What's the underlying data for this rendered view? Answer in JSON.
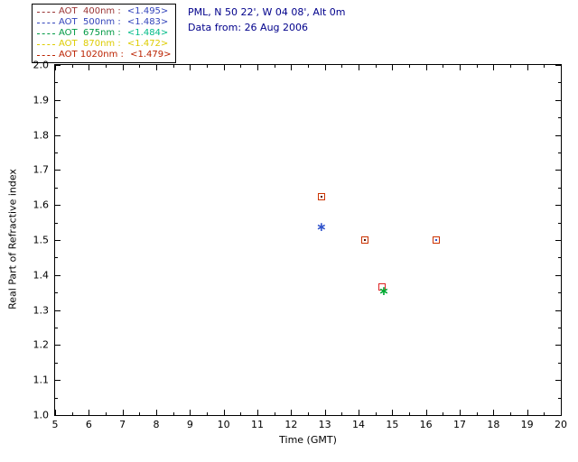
{
  "header": {
    "location": "PML, N 50 22', W 04 08', Alt 0m",
    "date": "Data from: 26 Aug 2006",
    "color": "#00008B"
  },
  "legend": {
    "entries": [
      {
        "label": "AOT  400nm : ",
        "value": "<1.495>",
        "label_color": "#993333",
        "value_color": "#3344BB"
      },
      {
        "label": "AOT  500nm : ",
        "value": "<1.483>",
        "label_color": "#3344BB",
        "value_color": "#3344BB"
      },
      {
        "label": "AOT  675nm : ",
        "value": "<1.484>",
        "label_color": "#009944",
        "value_color": "#00BB88"
      },
      {
        "label": "AOT  870nm : ",
        "value": "<1.472>",
        "label_color": "#DDCC00",
        "value_color": "#DDCC00"
      },
      {
        "label": "AOT 1020nm : ",
        "value": "<1.479>",
        "label_color": "#BB2200",
        "value_color": "#BB2200"
      }
    ]
  },
  "chart_data": {
    "type": "scatter",
    "title": "",
    "xlabel": "Time (GMT)",
    "ylabel": "Real Part of Refractive index",
    "xlim": [
      5,
      20
    ],
    "ylim": [
      1.0,
      2.0
    ],
    "x_major": 1,
    "x_minor": 0.5,
    "y_major": 0.1,
    "y_minor": 0.05,
    "grid": false,
    "legend_position": "top-left-outside",
    "points": [
      {
        "x": 12.9,
        "y": 1.625,
        "marker": "square",
        "color": "#CC3300",
        "inner": "#551100"
      },
      {
        "x": 12.9,
        "y": 1.535,
        "marker": "asterisk",
        "color": "#3355CC"
      },
      {
        "x": 14.2,
        "y": 1.5,
        "marker": "square",
        "color": "#CC3300",
        "inner": "#551100"
      },
      {
        "x": 16.3,
        "y": 1.5,
        "marker": "square",
        "color": "#CC3300",
        "inner": "#3355CC"
      },
      {
        "x": 14.7,
        "y": 1.367,
        "marker": "square",
        "color": "#DD2222"
      },
      {
        "x": 14.75,
        "y": 1.352,
        "marker": "asterisk",
        "color": "#00AA33"
      }
    ]
  }
}
